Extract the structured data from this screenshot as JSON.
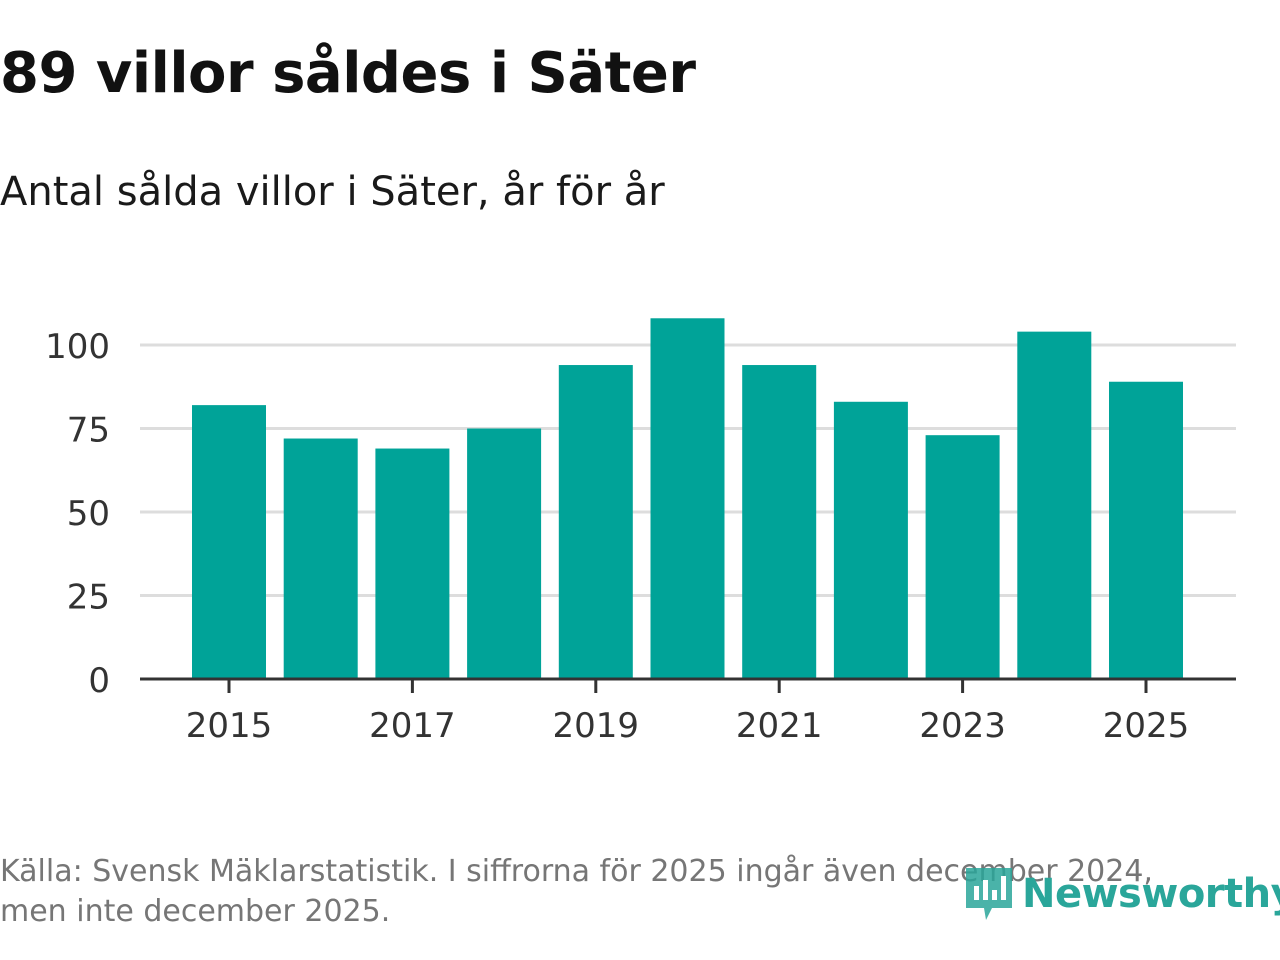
{
  "title": "89 villor såldes i Säter",
  "subtitle": "Antal sålda villor i Säter, år för år",
  "source_line1": "Källa: Svensk Mäklarstatistik. I siffrorna för 2025 ingår även december 2024,",
  "source_line2": "men inte december 2025.",
  "logo_text": "Newsworthy",
  "colors": {
    "bar": "#00a398",
    "grid": "#dddddd",
    "axis": "#333333",
    "logo": "#2aa69a"
  },
  "chart_data": {
    "type": "bar",
    "categories": [
      "2015",
      "2016",
      "2017",
      "2018",
      "2019",
      "2020",
      "2021",
      "2022",
      "2023",
      "2024",
      "2025"
    ],
    "values": [
      82,
      72,
      69,
      75,
      94,
      108,
      94,
      83,
      73,
      104,
      89
    ],
    "xticks": [
      "2015",
      "2017",
      "2019",
      "2021",
      "2023",
      "2025"
    ],
    "yticks": [
      0,
      25,
      50,
      75,
      100
    ],
    "ylim": [
      0,
      110
    ],
    "grid": true
  }
}
